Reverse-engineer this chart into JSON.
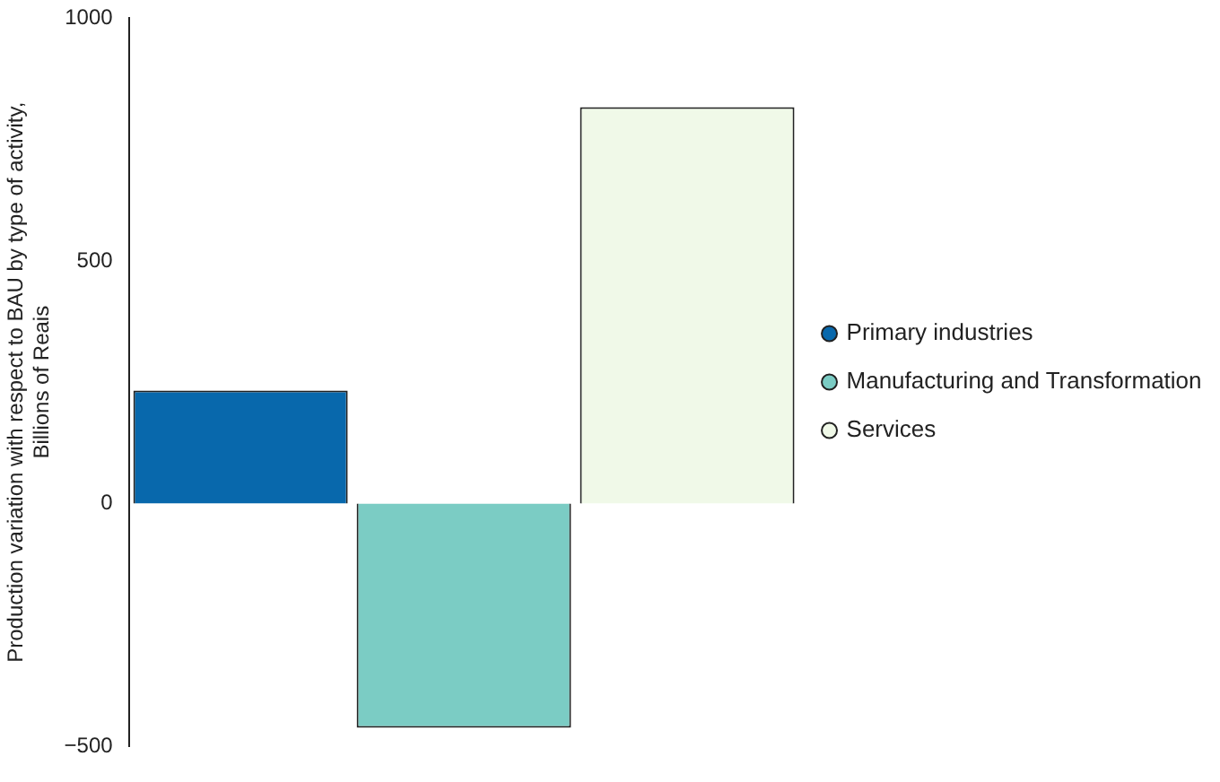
{
  "chart_data": {
    "type": "bar",
    "ylabel": "Production variation with respect to BAU by type of activity,\nBillions of Reais",
    "categories": [
      null
    ],
    "series": [
      {
        "name": "Primary industries",
        "color": "#0868ac",
        "values": [
          233
        ]
      },
      {
        "name": "Manufacturing and Transformation",
        "color": "#7bccc4",
        "values": [
          -462
        ]
      },
      {
        "name": "Services",
        "color": "#f0f9e8",
        "values": [
          817
        ]
      }
    ],
    "ylim": [
      -500,
      1000
    ],
    "yticks": [
      -500,
      0,
      500,
      1000
    ],
    "grid": false,
    "legend": "right"
  }
}
